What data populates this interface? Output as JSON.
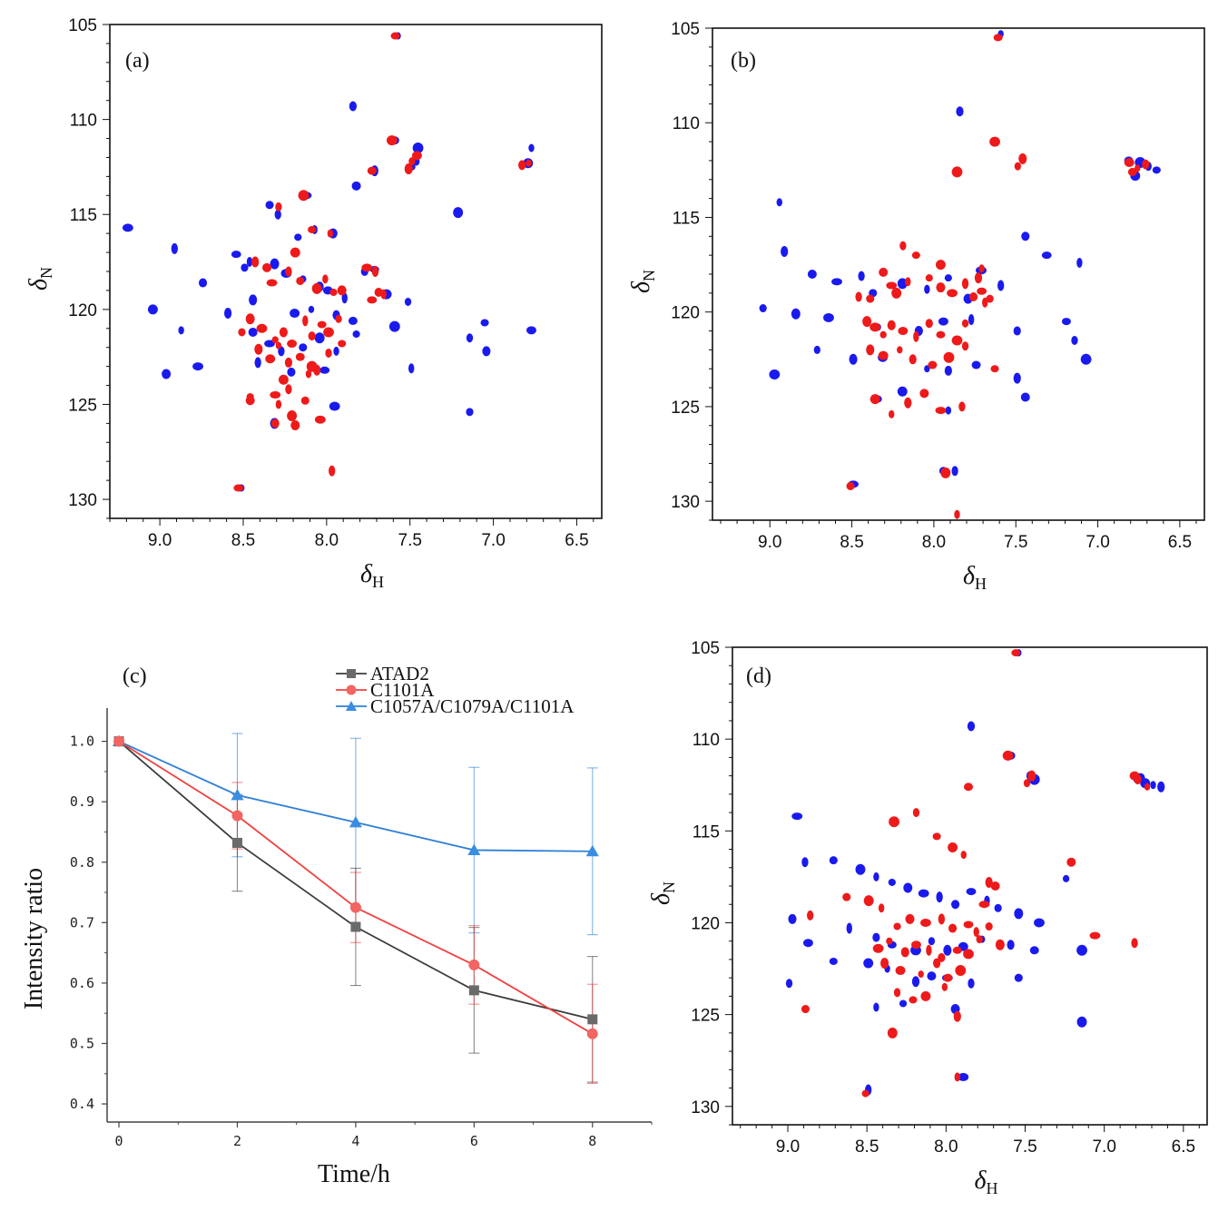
{
  "colors": {
    "spectrum_a": "#1a1aee",
    "spectrum_b": "#ee1a1a",
    "axis": "#111111"
  },
  "chart_data": [
    {
      "panel": "(a)",
      "type": "scatter",
      "xlabel_main": "δ",
      "xlabel_sub": "H",
      "ylabel_main": "δ",
      "ylabel_sub": "N",
      "xlim": [
        9.3,
        6.35
      ],
      "ylim": [
        131,
        105
      ],
      "x_ticks": [
        "9.0",
        "8.5",
        "8.0",
        "7.5",
        "7.0",
        "6.5"
      ],
      "y_ticks": [
        "105",
        "110",
        "115",
        "120",
        "125",
        "130"
      ],
      "series": [
        {
          "color": "#1a1aee",
          "x": [
            7.58,
            7.85,
            7.6,
            7.46,
            7.47,
            7.5,
            6.8,
            6.78,
            7.72,
            7.83,
            8.13,
            8.3,
            8.35,
            7.22,
            8.08,
            8.18,
            7.97,
            9.2,
            8.92,
            8.75,
            8.55,
            8.47,
            8.5,
            8.32,
            8.25,
            8.15,
            8.05,
            8.0,
            7.9,
            7.78,
            7.72,
            7.65,
            7.52,
            8.45,
            8.2,
            8.1,
            7.95,
            7.85,
            7.6,
            7.15,
            7.06,
            9.05,
            8.88,
            8.6,
            8.45,
            8.35,
            8.28,
            8.15,
            8.05,
            7.95,
            7.83,
            8.97,
            8.78,
            8.42,
            8.22,
            8.02,
            7.5,
            7.15,
            8.32,
            7.96,
            8.52,
            7.05,
            6.78
          ],
          "y": [
            105.6,
            109.3,
            111.1,
            111.5,
            112.2,
            112.5,
            112.3,
            111.5,
            112.7,
            113.5,
            114.0,
            115.0,
            114.5,
            114.9,
            115.8,
            116.2,
            116.0,
            115.7,
            116.8,
            118.6,
            117.1,
            117.5,
            117.8,
            117.6,
            118.1,
            118.4,
            118.8,
            119.0,
            119.4,
            118.0,
            117.9,
            119.2,
            119.6,
            119.5,
            120.2,
            120.0,
            120.3,
            120.6,
            120.9,
            121.5,
            120.7,
            120.0,
            121.1,
            120.2,
            121.2,
            121.8,
            122.2,
            122.0,
            121.5,
            122.2,
            121.3,
            123.4,
            123.0,
            122.8,
            123.3,
            123.2,
            123.1,
            125.4,
            126.0,
            125.1,
            129.4,
            122.2,
            121.1
          ]
        },
        {
          "color": "#ee1a1a",
          "x": [
            7.58,
            7.6,
            7.48,
            7.5,
            7.45,
            6.78,
            6.82,
            7.72,
            8.13,
            8.28,
            8.08,
            8.18,
            7.97,
            8.42,
            8.35,
            8.32,
            8.22,
            8.15,
            8.05,
            8.0,
            7.95,
            7.9,
            7.75,
            7.7,
            7.68,
            7.72,
            7.65,
            8.5,
            8.45,
            8.38,
            8.3,
            8.25,
            8.2,
            8.12,
            8.08,
            8.02,
            7.98,
            7.92,
            8.4,
            8.33,
            8.28,
            8.22,
            8.15,
            8.08,
            7.98,
            7.9,
            8.25,
            8.1,
            8.05,
            8.45,
            8.3,
            8.22,
            8.12,
            8.2,
            8.28,
            8.45,
            8.18,
            8.03,
            7.96,
            8.3,
            8.52
          ],
          "y": [
            105.6,
            111.1,
            112.2,
            112.6,
            111.9,
            112.3,
            112.4,
            112.7,
            114.0,
            114.6,
            115.8,
            117.0,
            116.0,
            117.5,
            117.8,
            118.6,
            118.0,
            118.5,
            118.9,
            118.4,
            119.1,
            119.0,
            117.8,
            118.0,
            119.1,
            119.5,
            119.2,
            121.2,
            120.5,
            121.0,
            121.6,
            121.2,
            121.8,
            120.6,
            121.4,
            120.8,
            121.2,
            120.5,
            122.1,
            122.6,
            121.9,
            122.8,
            122.5,
            123.0,
            122.3,
            121.8,
            123.7,
            123.4,
            123.2,
            124.8,
            124.5,
            124.2,
            124.8,
            125.6,
            125.0,
            124.6,
            126.1,
            125.8,
            128.5,
            126.0,
            129.4
          ]
        }
      ]
    },
    {
      "panel": "(b)",
      "type": "scatter",
      "xlabel_main": "δ",
      "xlabel_sub": "H",
      "ylabel_main": "δ",
      "ylabel_sub": "N",
      "xlim": [
        9.35,
        6.35
      ],
      "ylim": [
        131,
        105
      ],
      "x_ticks": [
        "9.0",
        "8.5",
        "8.0",
        "7.5",
        "7.0",
        "6.5"
      ],
      "y_ticks": [
        "105",
        "110",
        "115",
        "120",
        "125",
        "130"
      ],
      "series": [
        {
          "color": "#1a1aee",
          "x": [
            7.6,
            7.85,
            6.82,
            6.75,
            6.7,
            6.65,
            6.78,
            8.95,
            8.92,
            8.75,
            8.6,
            8.45,
            8.38,
            8.2,
            8.05,
            7.92,
            7.8,
            7.72,
            7.6,
            7.45,
            7.32,
            7.12,
            9.05,
            8.85,
            8.65,
            8.35,
            8.1,
            7.95,
            7.78,
            7.5,
            7.2,
            8.98,
            8.72,
            8.5,
            8.32,
            8.05,
            7.92,
            7.75,
            7.08,
            7.15,
            8.35,
            8.2,
            7.92,
            7.5,
            7.45,
            8.5,
            7.88,
            7.95
          ],
          "y": [
            105.3,
            109.4,
            112.0,
            112.1,
            112.3,
            112.5,
            112.8,
            114.2,
            116.8,
            118.0,
            118.4,
            118.1,
            119.0,
            118.5,
            118.8,
            118.2,
            119.3,
            117.8,
            118.6,
            116.0,
            117.0,
            117.4,
            119.8,
            120.1,
            120.3,
            120.8,
            121.0,
            120.5,
            120.4,
            121.0,
            120.5,
            123.3,
            122.0,
            122.5,
            122.4,
            123.0,
            123.1,
            122.8,
            122.5,
            121.5,
            124.6,
            124.2,
            125.2,
            123.5,
            124.5,
            129.1,
            128.4,
            128.4
          ]
        },
        {
          "color": "#ee1a1a",
          "x": [
            7.6,
            7.62,
            7.48,
            7.45,
            6.8,
            6.75,
            6.7,
            6.78,
            7.85,
            8.18,
            8.1,
            7.95,
            7.7,
            7.72,
            8.3,
            8.25,
            8.45,
            8.38,
            8.22,
            8.15,
            8.02,
            7.95,
            7.88,
            7.8,
            7.75,
            7.7,
            7.68,
            7.65,
            8.4,
            8.35,
            8.3,
            8.25,
            8.18,
            8.1,
            8.02,
            7.95,
            7.85,
            7.8,
            8.38,
            8.3,
            8.2,
            8.12,
            8.0,
            7.9,
            7.8,
            7.62,
            8.35,
            8.25,
            8.15,
            8.05,
            7.95,
            7.82,
            8.5,
            7.92,
            7.85
          ],
          "y": [
            105.5,
            111.0,
            112.3,
            111.9,
            112.1,
            112.4,
            112.2,
            112.6,
            112.6,
            116.5,
            117.0,
            117.5,
            117.7,
            118.2,
            117.9,
            118.6,
            119.2,
            119.3,
            119.0,
            118.4,
            118.2,
            118.7,
            119.0,
            118.5,
            119.2,
            118.9,
            119.5,
            119.3,
            120.5,
            120.8,
            121.2,
            120.7,
            121.0,
            121.3,
            120.6,
            121.2,
            121.5,
            120.6,
            122.0,
            122.3,
            122.0,
            122.5,
            122.8,
            122.4,
            121.8,
            123.0,
            124.6,
            125.4,
            124.8,
            124.3,
            125.2,
            125.0,
            129.2,
            128.5,
            130.7
          ]
        }
      ]
    },
    {
      "panel": "(c)",
      "type": "line",
      "xlabel": "Time/h",
      "ylabel": "Intensity ratio",
      "xlim": [
        -0.2,
        9
      ],
      "ylim": [
        0.37,
        1.055
      ],
      "x_ticks": [
        "0",
        "2",
        "4",
        "6",
        "8"
      ],
      "y_ticks": [
        "0.4",
        "0.5",
        "0.6",
        "0.7",
        "0.8",
        "0.9",
        "1.0"
      ],
      "x": [
        0,
        2,
        4,
        6,
        8
      ],
      "series": [
        {
          "name": "ATAD2",
          "color": "#3d3d3d",
          "marker": "square",
          "values": [
            1.0,
            0.832,
            0.693,
            0.588,
            0.54
          ],
          "errors": [
            0.0,
            0.08,
            0.097,
            0.104,
            0.104
          ]
        },
        {
          "name": "C1101A",
          "color": "#f0413f",
          "marker": "circle",
          "values": [
            1.0,
            0.877,
            0.725,
            0.63,
            0.516
          ],
          "errors": [
            0.0,
            0.055,
            0.058,
            0.065,
            0.082
          ]
        },
        {
          "name": "C1057A/C1079A/C1101A",
          "color": "#2f7fd4",
          "marker": "triangle",
          "values": [
            1.0,
            0.911,
            0.866,
            0.82,
            0.818
          ],
          "errors": [
            0.0,
            0.102,
            0.139,
            0.137,
            0.138
          ]
        }
      ]
    },
    {
      "panel": "(d)",
      "type": "scatter",
      "xlabel_main": "δ",
      "xlabel_sub": "H",
      "ylabel_main": "δ",
      "ylabel_sub": "N",
      "xlim": [
        9.35,
        6.35
      ],
      "ylim": [
        131,
        105
      ],
      "x_ticks": [
        "9.0",
        "8.5",
        "8.0",
        "7.5",
        "7.0",
        "6.5"
      ],
      "y_ticks": [
        "105",
        "110",
        "115",
        "120",
        "125",
        "130"
      ],
      "series": [
        {
          "color": "#1a1aee",
          "x": [
            7.55,
            7.85,
            7.6,
            7.45,
            7.48,
            6.8,
            6.75,
            6.7,
            6.65,
            6.78,
            8.95,
            8.9,
            8.72,
            8.55,
            8.45,
            8.35,
            8.25,
            8.15,
            8.05,
            7.95,
            7.85,
            7.75,
            7.68,
            7.55,
            7.42,
            7.25,
            8.98,
            8.88,
            8.62,
            8.45,
            8.35,
            8.2,
            8.1,
            8.0,
            7.9,
            7.78,
            7.6,
            7.45,
            7.15,
            9.0,
            8.72,
            8.5,
            8.38,
            8.2,
            8.1,
            8.0,
            7.85,
            7.55,
            7.15,
            8.45,
            8.28,
            7.95,
            7.9,
            8.5
          ],
          "y": [
            105.3,
            109.3,
            110.9,
            112.2,
            112.0,
            112.2,
            112.4,
            112.5,
            112.6,
            112.1,
            114.2,
            116.7,
            116.6,
            117.1,
            117.5,
            117.8,
            118.1,
            118.4,
            118.6,
            119.0,
            118.3,
            118.8,
            119.2,
            119.5,
            120.0,
            117.6,
            119.8,
            121.1,
            120.3,
            120.8,
            121.2,
            121.5,
            121.0,
            121.5,
            121.3,
            120.9,
            121.2,
            121.5,
            121.5,
            123.3,
            122.1,
            122.2,
            122.5,
            123.2,
            122.9,
            123.0,
            123.3,
            123.0,
            125.4,
            124.6,
            124.4,
            124.7,
            128.4,
            129.1
          ]
        },
        {
          "color": "#ee1a1a",
          "x": [
            7.55,
            7.6,
            7.48,
            7.45,
            6.8,
            6.72,
            6.78,
            7.85,
            8.32,
            8.18,
            8.05,
            7.95,
            7.88,
            7.72,
            7.68,
            7.75,
            8.85,
            8.62,
            8.48,
            8.4,
            8.3,
            8.22,
            8.12,
            8.02,
            7.95,
            7.85,
            7.8,
            7.72,
            7.65,
            8.42,
            8.35,
            8.25,
            8.18,
            8.1,
            8.02,
            7.92,
            7.85,
            7.78,
            8.38,
            8.28,
            8.15,
            8.05,
            7.98,
            7.9,
            8.3,
            8.2,
            8.12,
            8.0,
            7.92,
            7.2,
            7.05,
            6.8,
            8.88,
            8.33,
            7.92,
            8.5
          ],
          "y": [
            105.3,
            110.9,
            112.4,
            112.0,
            112.0,
            112.6,
            112.2,
            112.6,
            114.5,
            114.0,
            115.3,
            115.9,
            116.3,
            117.8,
            118.0,
            119.0,
            119.6,
            118.6,
            118.8,
            119.2,
            120.2,
            119.8,
            120.0,
            119.8,
            120.3,
            120.1,
            120.5,
            120.2,
            121.2,
            121.4,
            121.0,
            121.6,
            121.2,
            121.5,
            121.9,
            121.5,
            121.7,
            120.9,
            122.2,
            122.6,
            122.8,
            122.2,
            123.0,
            122.6,
            123.8,
            124.2,
            124.0,
            123.5,
            125.1,
            116.7,
            120.7,
            121.1,
            124.7,
            126.0,
            128.4,
            129.3
          ]
        }
      ]
    }
  ]
}
